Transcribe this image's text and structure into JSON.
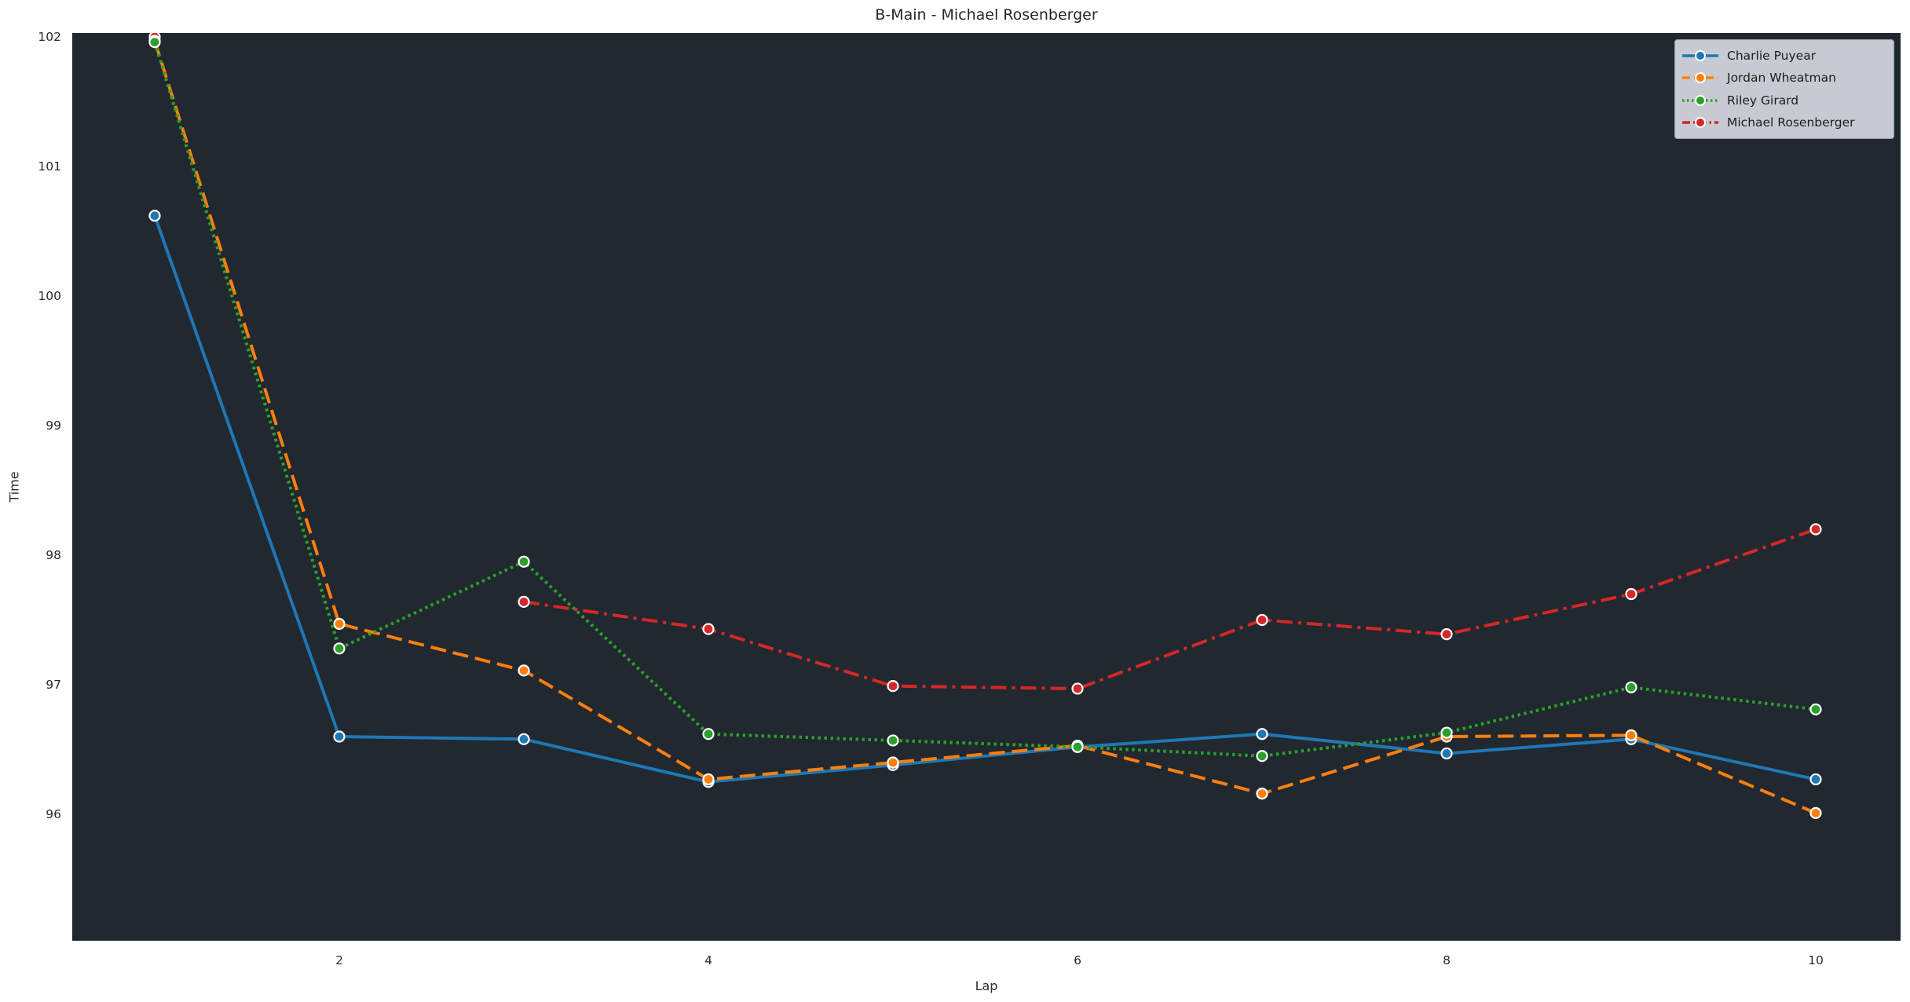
{
  "figure": {
    "background": "#ffffff",
    "plot_background": "#212830",
    "text_color": "#2b2b2b",
    "marker_edge_color": "#ffffff"
  },
  "chart_data": {
    "type": "line",
    "title": "B-Main - Michael Rosenberger",
    "xlabel": "Lap",
    "ylabel": "Time",
    "x": [
      1,
      2,
      3,
      4,
      5,
      6,
      7,
      8,
      9,
      10
    ],
    "x_ticks": [
      2,
      4,
      6,
      8,
      10
    ],
    "y_ticks": [
      96,
      97,
      98,
      99,
      100,
      101,
      102
    ],
    "xlim": [
      0.55,
      10.45
    ],
    "ylim": [
      95.02,
      102.03
    ],
    "grid": false,
    "legend_position": "upper right",
    "series": [
      {
        "name": "Charlie Puyear",
        "color": "#1f77b4",
        "linestyle": "solid",
        "marker": "circle",
        "values": [
          100.62,
          96.6,
          96.58,
          96.25,
          96.38,
          96.52,
          96.62,
          96.47,
          96.58,
          96.27
        ]
      },
      {
        "name": "Jordan Wheatman",
        "color": "#ff7f0e",
        "linestyle": "dashed",
        "marker": "circle",
        "values": [
          101.97,
          97.47,
          97.11,
          96.27,
          96.4,
          96.53,
          96.16,
          96.6,
          96.61,
          96.01
        ]
      },
      {
        "name": "Riley Girard",
        "color": "#2ca02c",
        "linestyle": "dotted",
        "marker": "circle",
        "values": [
          101.96,
          97.28,
          97.95,
          96.62,
          96.57,
          96.52,
          96.45,
          96.63,
          96.98,
          96.81
        ]
      },
      {
        "name": "Michael Rosenberger",
        "color": "#d62728",
        "linestyle": "dashdot",
        "marker": "circle",
        "values": [
          102.0,
          null,
          97.64,
          97.43,
          96.99,
          96.97,
          97.5,
          97.39,
          97.7,
          98.2
        ]
      }
    ]
  }
}
